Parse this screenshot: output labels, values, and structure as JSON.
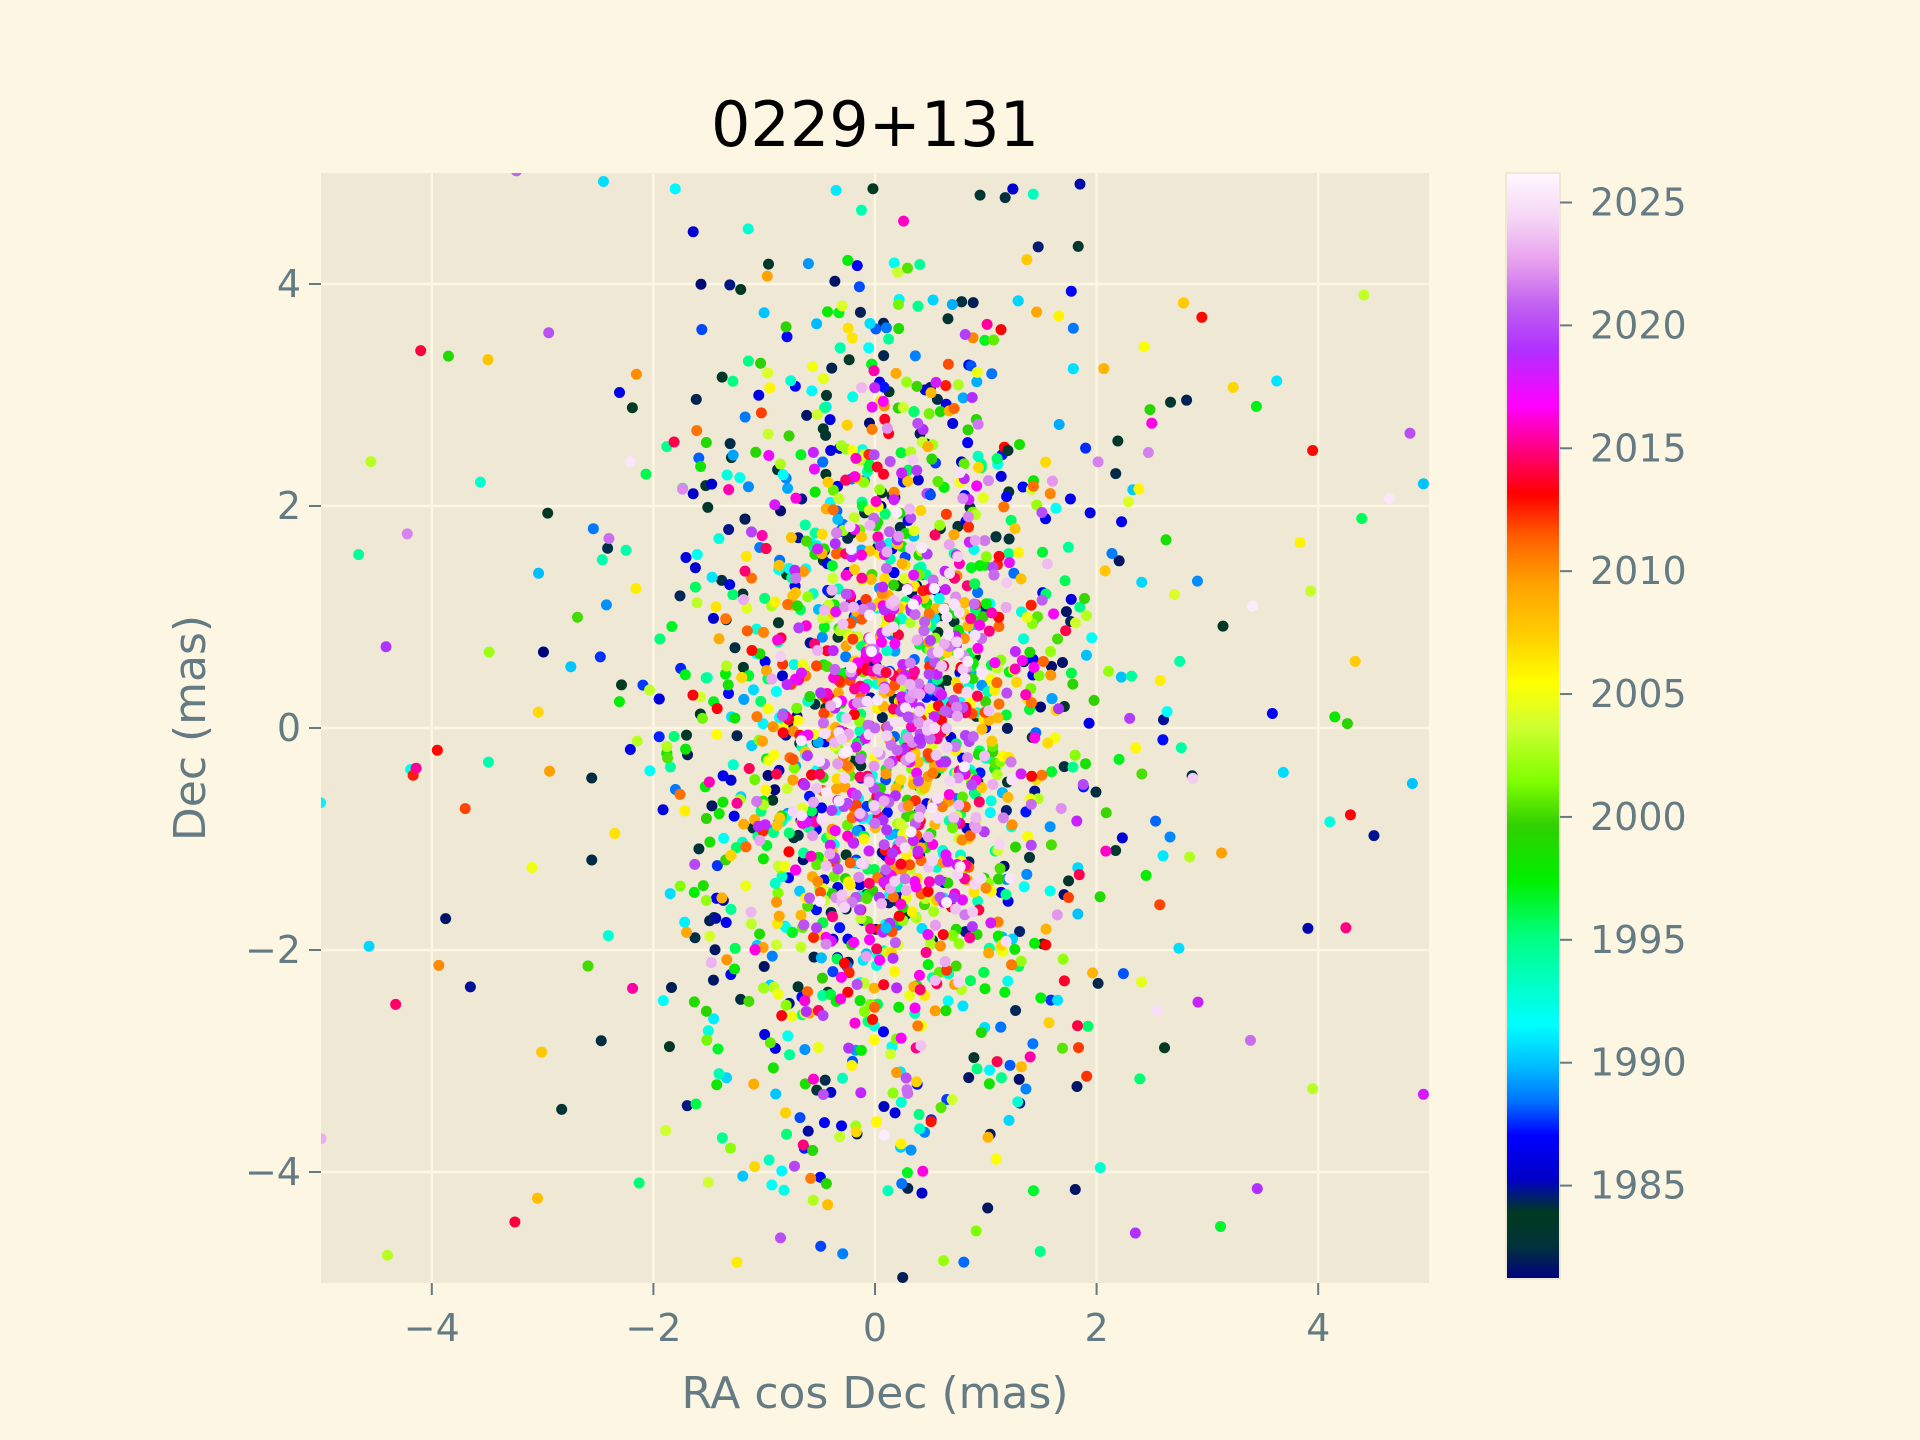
{
  "chart_data": {
    "type": "scatter",
    "title": "0229+131",
    "xlabel": "RA cos Dec (mas)",
    "ylabel": "Dec (mas)",
    "xlim": [
      -5,
      5
    ],
    "ylim": [
      -5,
      5
    ],
    "x_ticks": [
      -4,
      -2,
      0,
      2,
      4
    ],
    "y_ticks": [
      -4,
      -2,
      0,
      2,
      4
    ],
    "x_tick_labels": [
      "−4",
      "−2",
      "0",
      "2",
      "4"
    ],
    "y_tick_labels": [
      "−4",
      "−2",
      "0",
      "2",
      "4"
    ],
    "grid": true,
    "colormap": "gist_ncar",
    "colorbar": {
      "range": [
        1981.2,
        2026.2
      ],
      "ticks": [
        1985,
        1990,
        1995,
        2000,
        2005,
        2010,
        2015,
        2020,
        2025
      ],
      "tick_labels": [
        "1985",
        "1990",
        "1995",
        "2000",
        "2005",
        "2010",
        "2015",
        "2020",
        "2025"
      ]
    },
    "points_note": "Representative sample of the ~2500 plotted points; x/y in mas, c = epoch (year)",
    "points": [
      {
        "x": 0.0,
        "y": 0.0,
        "c": 2021
      },
      {
        "x": 0.3,
        "y": 0.1,
        "c": 2020
      },
      {
        "x": 0.4,
        "y": -0.1,
        "c": 2019
      },
      {
        "x": 0.2,
        "y": -0.2,
        "c": 2021
      },
      {
        "x": -0.3,
        "y": -0.1,
        "c": 2024
      },
      {
        "x": -0.5,
        "y": -0.3,
        "c": 2025
      },
      {
        "x": -0.4,
        "y": 0.2,
        "c": 2023
      },
      {
        "x": 0.6,
        "y": 0.3,
        "c": 2018
      },
      {
        "x": 0.1,
        "y": 0.5,
        "c": 2014
      },
      {
        "x": -0.2,
        "y": 0.8,
        "c": 2012
      },
      {
        "x": 0.3,
        "y": -0.7,
        "c": 2010
      },
      {
        "x": -0.1,
        "y": -1.0,
        "c": 2006
      },
      {
        "x": 0.7,
        "y": -0.9,
        "c": 2001
      },
      {
        "x": -0.7,
        "y": 1.1,
        "c": 1999
      },
      {
        "x": 0.9,
        "y": 1.3,
        "c": 1996
      },
      {
        "x": -0.9,
        "y": -1.4,
        "c": 1993
      },
      {
        "x": 0.1,
        "y": -1.8,
        "c": 1990
      },
      {
        "x": 0.5,
        "y": 2.1,
        "c": 1988
      },
      {
        "x": -0.4,
        "y": 2.5,
        "c": 1986
      },
      {
        "x": 1.2,
        "y": 2.5,
        "c": 1983
      },
      {
        "x": -4.1,
        "y": 3.4,
        "c": 2014
      },
      {
        "x": -3.85,
        "y": 3.35,
        "c": 1999
      },
      {
        "x": 3.95,
        "y": 2.5,
        "c": 2013
      },
      {
        "x": 2.95,
        "y": 3.7,
        "c": 2013
      },
      {
        "x": 1.85,
        "y": 4.9,
        "c": 1985
      },
      {
        "x": 4.95,
        "y": 2.2,
        "c": 1990
      },
      {
        "x": -3.95,
        "y": -0.2,
        "c": 2013
      },
      {
        "x": 4.15,
        "y": 0.1,
        "c": 1998
      },
      {
        "x": 3.95,
        "y": -3.25,
        "c": 2003
      },
      {
        "x": -4.4,
        "y": -4.75,
        "c": 2003
      },
      {
        "x": -5.0,
        "y": -3.7,
        "c": 2023
      },
      {
        "x": 4.95,
        "y": -3.3,
        "c": 2018
      },
      {
        "x": 4.85,
        "y": -0.5,
        "c": 1990
      },
      {
        "x": 3.45,
        "y": -4.15,
        "c": 2019
      },
      {
        "x": 2.35,
        "y": -4.55,
        "c": 2019
      },
      {
        "x": -3.25,
        "y": -4.45,
        "c": 2014
      },
      {
        "x": 0.25,
        "y": -4.95,
        "c": 1982
      },
      {
        "x": -4.55,
        "y": 2.4,
        "c": 2003
      },
      {
        "x": 4.25,
        "y": -1.8,
        "c": 2015
      },
      {
        "x": 2.75,
        "y": 0.6,
        "c": 1994
      }
    ]
  }
}
